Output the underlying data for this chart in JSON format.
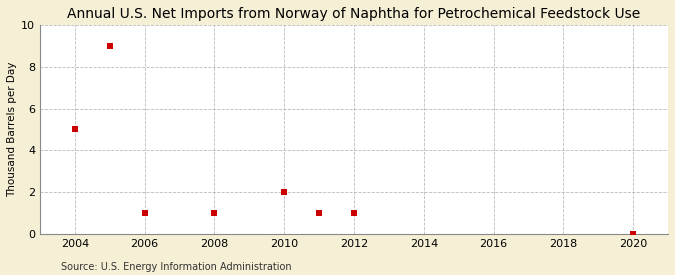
{
  "title": "Annual U.S. Net Imports from Norway of Naphtha for Petrochemical Feedstock Use",
  "ylabel": "Thousand Barrels per Day",
  "source": "Source: U.S. Energy Information Administration",
  "figure_bg_color": "#f5efd6",
  "plot_bg_color": "#ffffff",
  "data_years": [
    2004,
    2005,
    2006,
    2008,
    2010,
    2011,
    2012,
    2020
  ],
  "data_values": [
    5.0,
    9.0,
    1.0,
    1.0,
    2.0,
    1.0,
    1.0,
    0.0
  ],
  "marker_color": "#cc0000",
  "marker_size": 4,
  "xlim": [
    2003,
    2021
  ],
  "ylim": [
    0,
    10
  ],
  "xticks": [
    2004,
    2006,
    2008,
    2010,
    2012,
    2014,
    2016,
    2018,
    2020
  ],
  "yticks": [
    0,
    2,
    4,
    6,
    8,
    10
  ],
  "grid_color": "#aaaaaa",
  "grid_style": "--",
  "grid_alpha": 0.8,
  "title_fontsize": 10,
  "label_fontsize": 7.5,
  "tick_fontsize": 8,
  "source_fontsize": 7
}
